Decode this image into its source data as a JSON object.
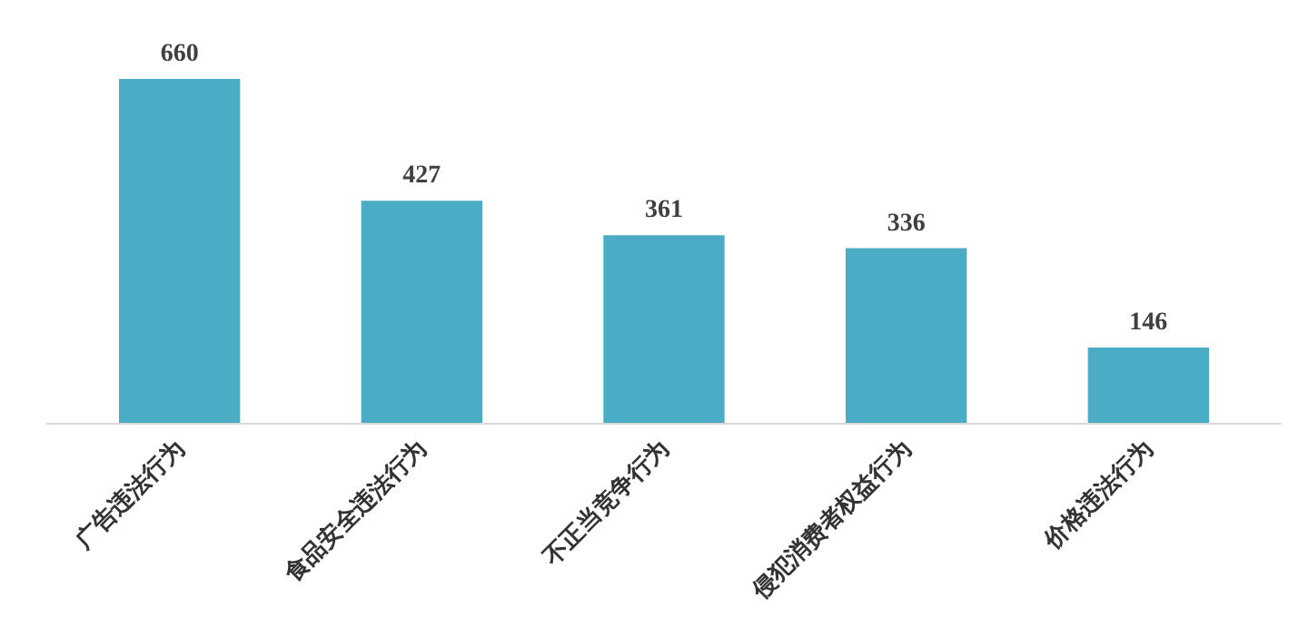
{
  "chart_data": {
    "type": "bar",
    "categories": [
      "广告违法行为",
      "食品安全违法行为",
      "不正当竞争行为",
      "侵犯消费者权益行为",
      "价格违法行为"
    ],
    "values": [
      660,
      427,
      361,
      336,
      146
    ],
    "color": "#4bacc6",
    "data_labels": true,
    "grid": false,
    "tick_labels": "x"
  }
}
